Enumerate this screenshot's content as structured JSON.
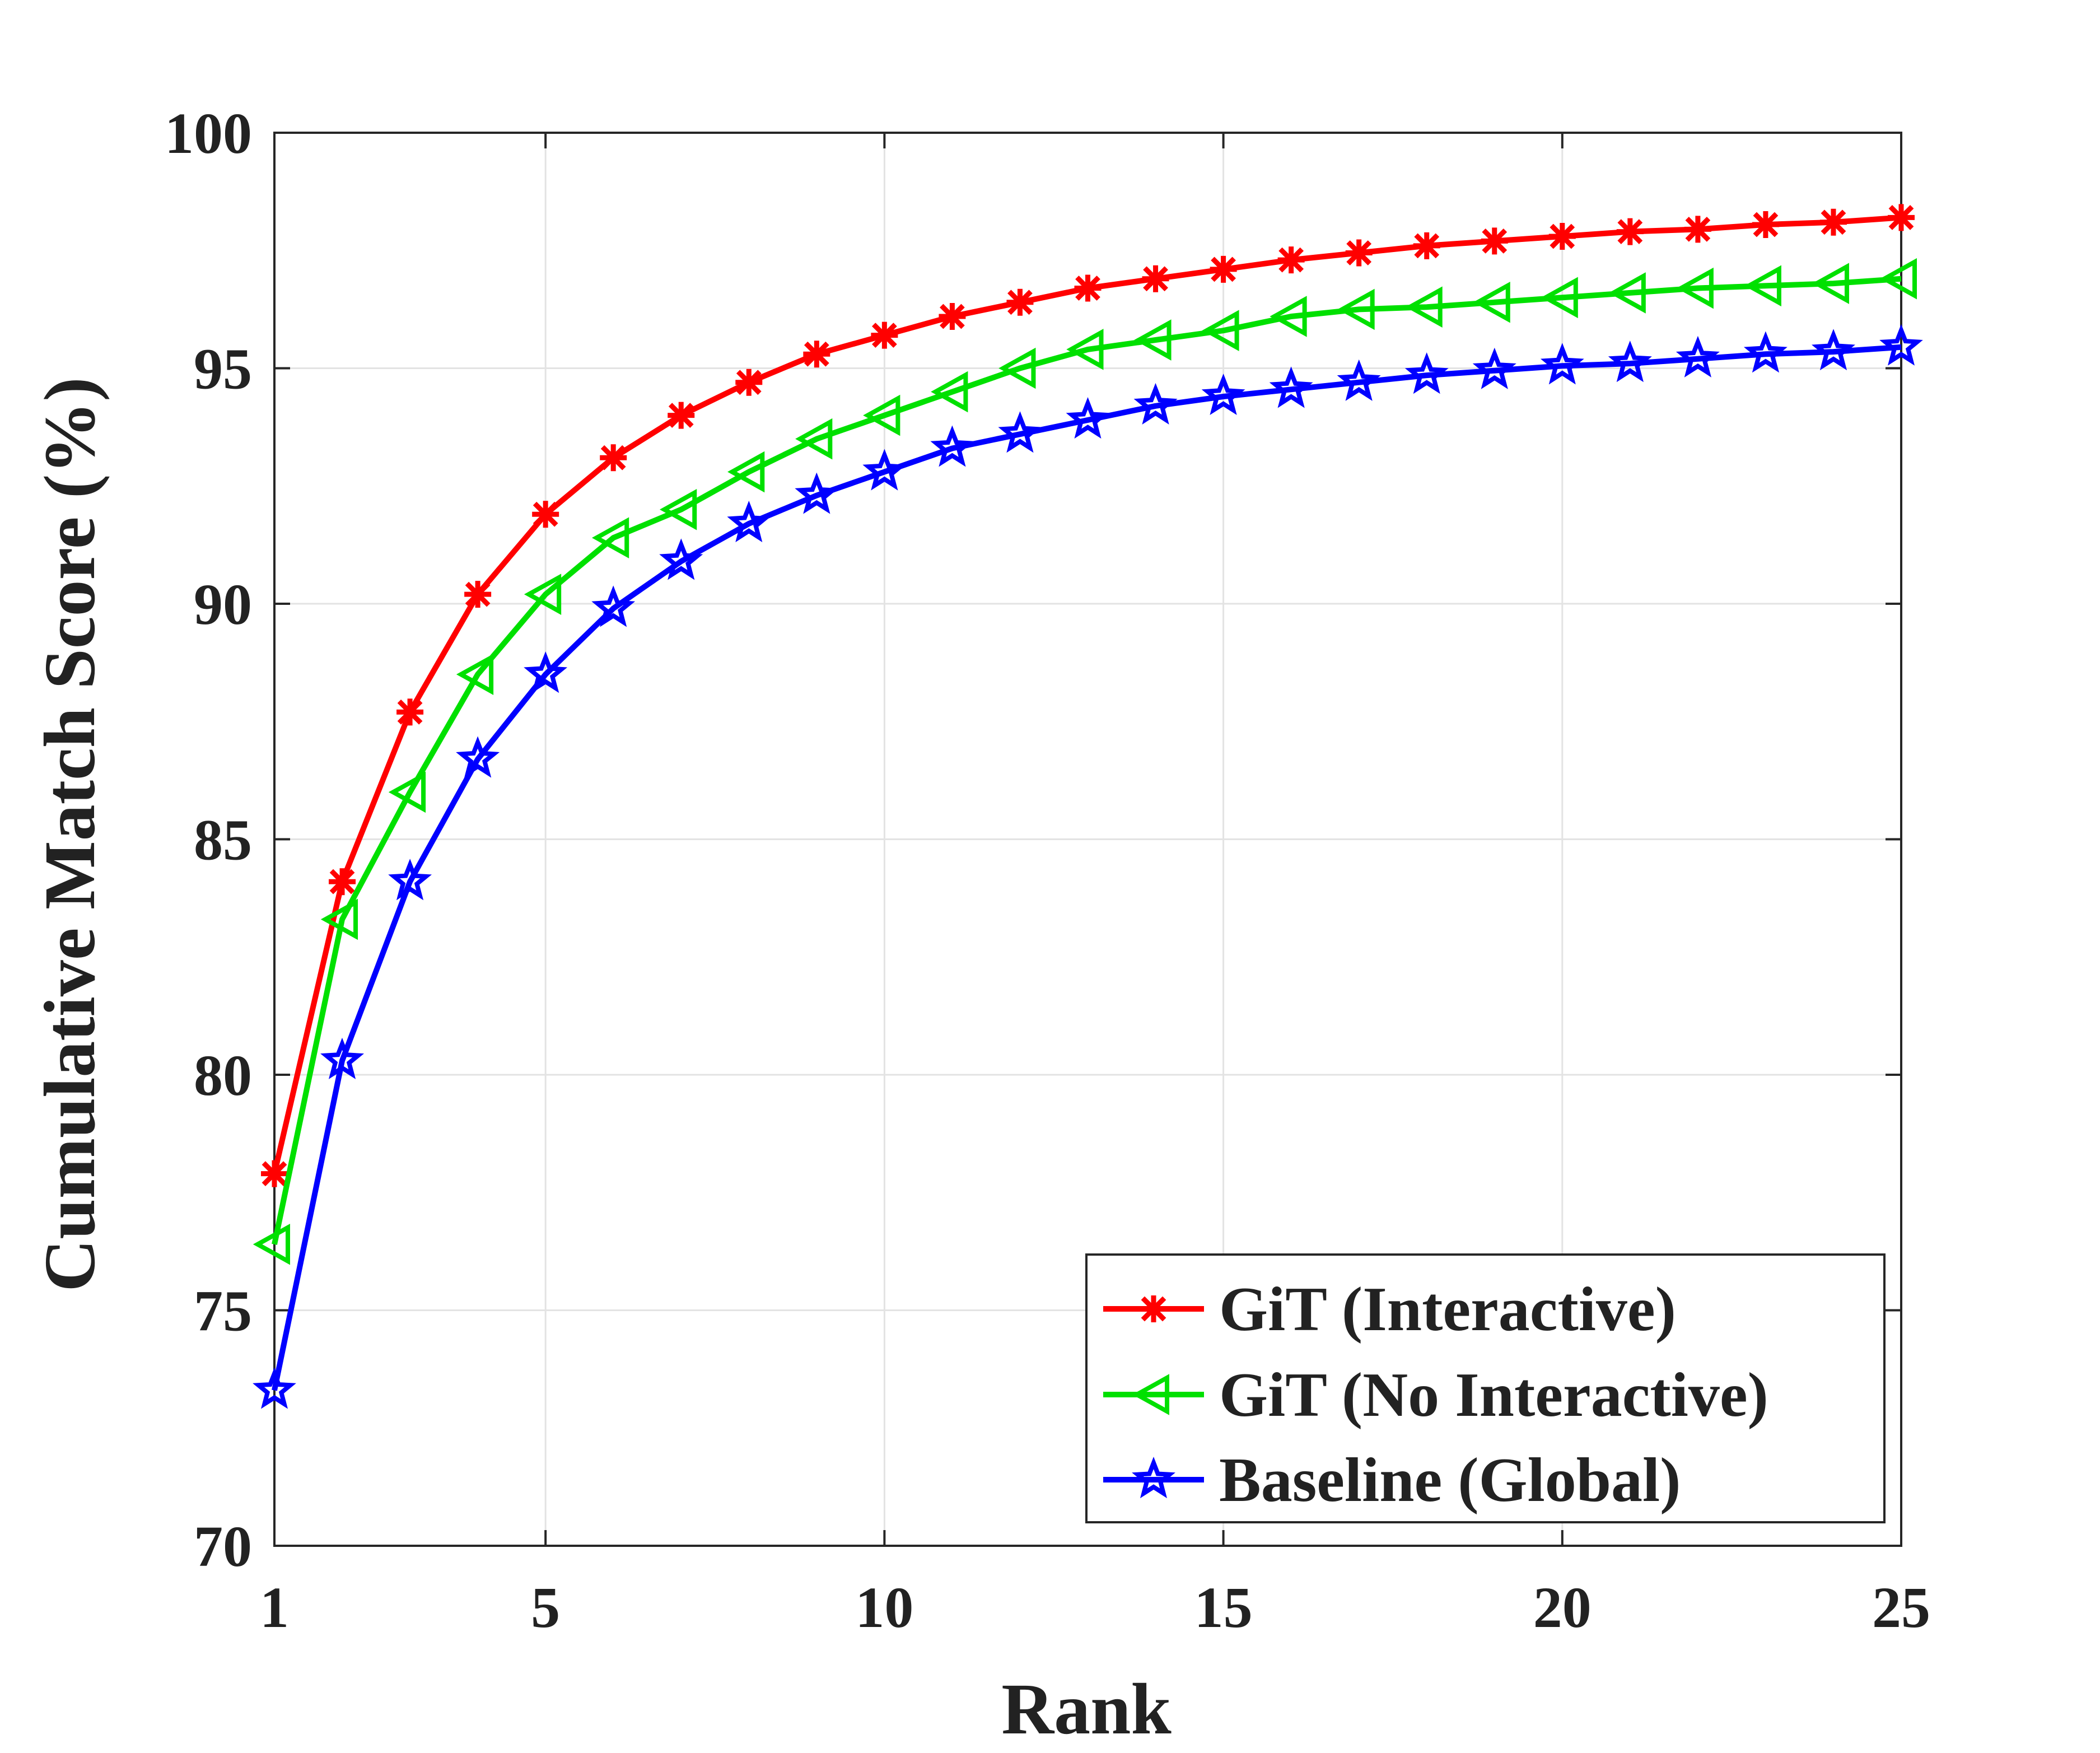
{
  "chart_data": {
    "type": "line",
    "title": "",
    "xlabel": "Rank",
    "ylabel": "Cumulative Match Score (%)",
    "xlim": [
      1,
      25
    ],
    "ylim": [
      70,
      100
    ],
    "xticks": [
      1,
      5,
      10,
      15,
      20,
      25
    ],
    "yticks": [
      70,
      75,
      80,
      85,
      90,
      95,
      100
    ],
    "grid": true,
    "legend_position": "bottom-right",
    "x": [
      1,
      2,
      3,
      4,
      5,
      6,
      7,
      8,
      9,
      10,
      11,
      12,
      13,
      14,
      15,
      16,
      17,
      18,
      19,
      20,
      21,
      22,
      23,
      24,
      25
    ],
    "series": [
      {
        "name": "GiT (Interactive)",
        "color": "#ff0000",
        "marker": "asterisk",
        "values": [
          77.9,
          84.1,
          87.7,
          90.2,
          91.9,
          93.1,
          94.0,
          94.7,
          95.3,
          95.7,
          96.1,
          96.4,
          96.7,
          96.9,
          97.1,
          97.3,
          97.45,
          97.6,
          97.7,
          97.8,
          97.9,
          97.95,
          98.05,
          98.1,
          98.2
        ]
      },
      {
        "name": "GiT (No Interactive)",
        "color": "#00e000",
        "marker": "triangle-left",
        "values": [
          76.4,
          83.3,
          86.0,
          88.5,
          90.2,
          91.4,
          92.0,
          92.8,
          93.5,
          94.0,
          94.5,
          95.0,
          95.4,
          95.6,
          95.8,
          96.1,
          96.25,
          96.3,
          96.4,
          96.5,
          96.6,
          96.7,
          96.75,
          96.8,
          96.9
        ]
      },
      {
        "name": "Baseline (Global)",
        "color": "#0000ff",
        "marker": "star",
        "values": [
          73.3,
          80.3,
          84.1,
          86.7,
          88.5,
          89.9,
          90.9,
          91.7,
          92.3,
          92.8,
          93.3,
          93.6,
          93.9,
          94.2,
          94.4,
          94.55,
          94.7,
          94.85,
          94.95,
          95.05,
          95.1,
          95.2,
          95.3,
          95.35,
          95.45
        ]
      }
    ]
  }
}
